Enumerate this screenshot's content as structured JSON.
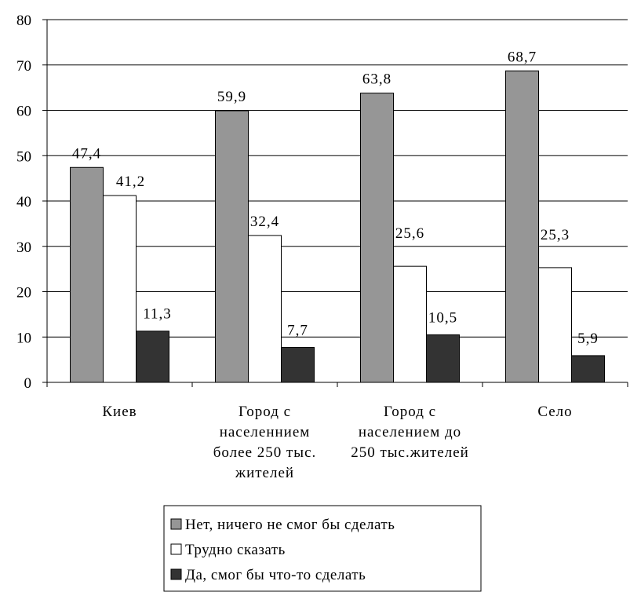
{
  "chart_data": {
    "type": "bar",
    "title": "",
    "xlabel": "",
    "ylabel": "",
    "ylim": [
      0,
      80
    ],
    "yticks": [
      0,
      10,
      20,
      30,
      40,
      50,
      60,
      70,
      80
    ],
    "grid": true,
    "legend_position": "bottom",
    "categories": [
      [
        "Киев"
      ],
      [
        "Город с",
        "населеннием",
        "более 250 тыс.",
        "жителей"
      ],
      [
        "Город с",
        "населением до",
        "250 тыс.жителей"
      ],
      [
        "Село"
      ]
    ],
    "series": [
      {
        "name": "Нет, ничего не смог бы сделать",
        "color": "#969696",
        "values": [
          47.4,
          59.9,
          63.8,
          68.7
        ],
        "labels": [
          "47,4",
          "59,9",
          "63,8",
          "68,7"
        ]
      },
      {
        "name": "Трудно сказать",
        "color": "#ffffff",
        "values": [
          41.2,
          32.4,
          25.6,
          25.3
        ],
        "labels": [
          "41,2",
          "32,4",
          "25,6",
          "25,3"
        ]
      },
      {
        "name": "Да, смог бы что-то сделать",
        "color": "#333333",
        "values": [
          11.3,
          7.7,
          10.5,
          5.9
        ],
        "labels": [
          "11,3",
          "7,7",
          "10,5",
          "5,9"
        ]
      }
    ]
  }
}
